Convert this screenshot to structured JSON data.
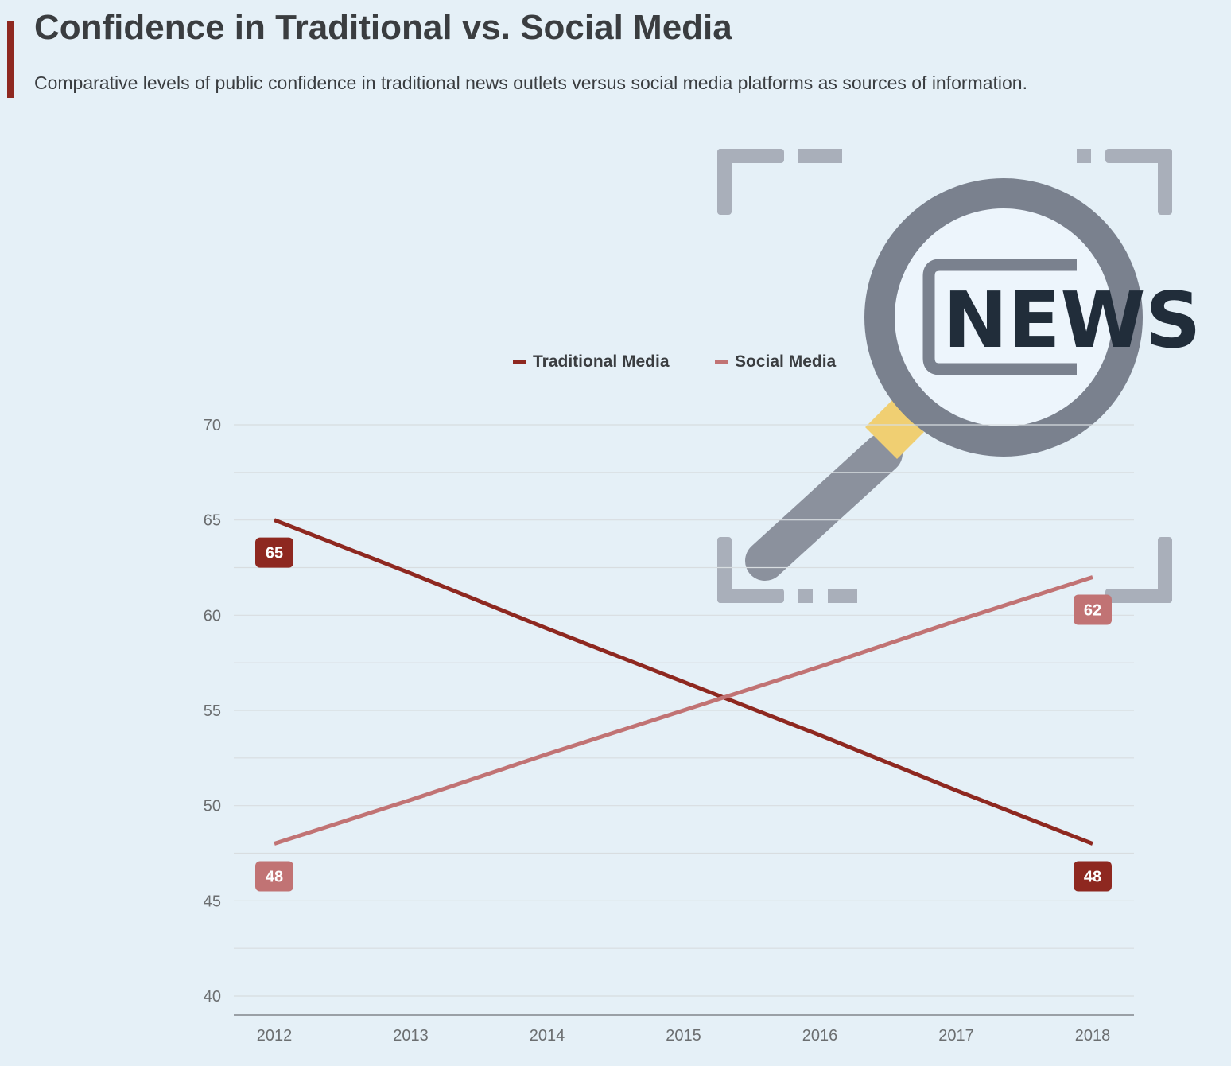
{
  "header": {
    "title": "Confidence in Traditional vs. Social Media",
    "subtitle": "Comparative levels of public confidence in traditional news outlets versus social media platforms as sources of information."
  },
  "illustration": {
    "icon": "news-magnifier-icon",
    "text": "NEWS"
  },
  "colors": {
    "background": "#e5f0f7",
    "accent": "#8e2820",
    "traditional": "#8e2820",
    "social": "#c17374",
    "grid": "#d8dde0",
    "axis_text": "#6b6e70"
  },
  "chart_data": {
    "type": "line",
    "title": "Confidence in Traditional vs. Social Media",
    "xlabel": "",
    "ylabel": "",
    "x": [
      "2012",
      "2013",
      "2014",
      "2015",
      "2016",
      "2017",
      "2018"
    ],
    "ylim": [
      40,
      70
    ],
    "yticks": [
      40,
      45,
      50,
      55,
      60,
      65,
      70
    ],
    "grid": true,
    "legend_position": "top-center",
    "series": [
      {
        "name": "Traditional Media",
        "color": "#8e2820",
        "values": [
          65,
          62.2,
          59.3,
          56.5,
          53.7,
          50.8,
          48
        ]
      },
      {
        "name": "Social Media",
        "color": "#c17374",
        "values": [
          48,
          50.3,
          52.7,
          55,
          57.3,
          59.7,
          62
        ]
      }
    ],
    "annotations": [
      {
        "series": 0,
        "index": 0,
        "text": "65"
      },
      {
        "series": 0,
        "index": 6,
        "text": "48"
      },
      {
        "series": 1,
        "index": 0,
        "text": "48"
      },
      {
        "series": 1,
        "index": 6,
        "text": "62"
      }
    ]
  }
}
